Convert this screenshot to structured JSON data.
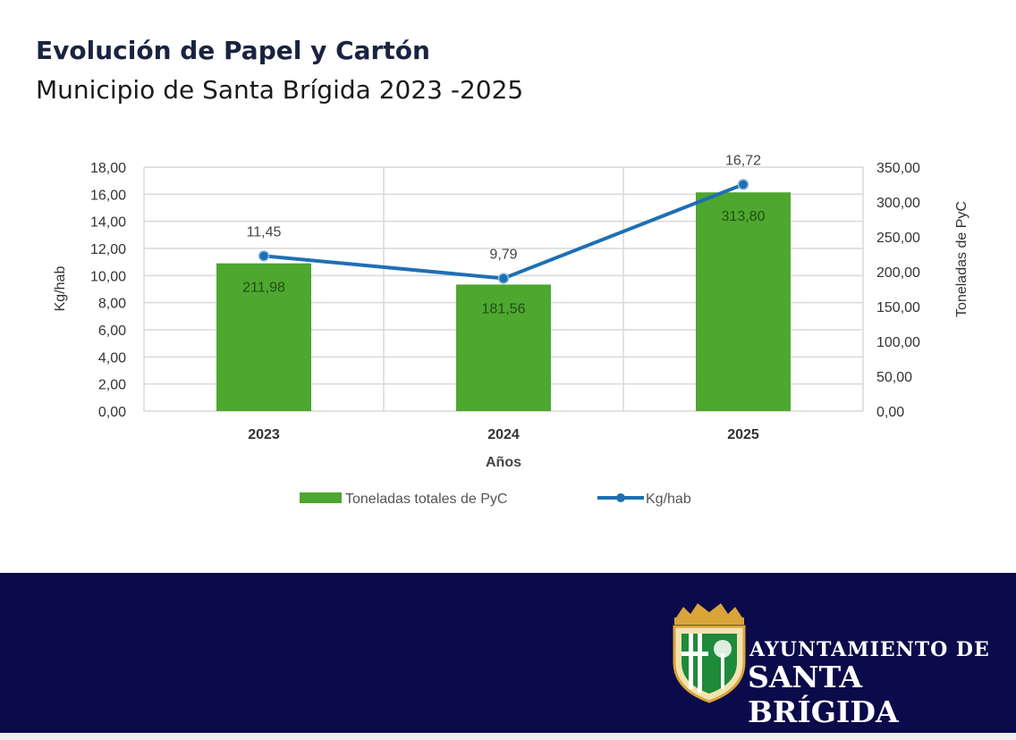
{
  "header": {
    "title": "Evolución de Papel y Cartón",
    "subtitle": "Municipio de Santa Brígida 2023 -2025"
  },
  "chart_data": {
    "type": "bar+line",
    "categories": [
      "2023",
      "2024",
      "2025"
    ],
    "xlabel": "Años",
    "ylabel_left": "Kg/hab",
    "ylabel_right": "Toneladas de PyC",
    "ylim_left": [
      0,
      18
    ],
    "ylim_right": [
      0,
      350
    ],
    "yticks_left": [
      "0,00",
      "2,00",
      "4,00",
      "6,00",
      "8,00",
      "10,00",
      "12,00",
      "14,00",
      "16,00",
      "18,00"
    ],
    "yticks_right": [
      "0,00",
      "50,00",
      "100,00",
      "150,00",
      "200,00",
      "250,00",
      "300,00",
      "350,00"
    ],
    "grid": true,
    "legend_placement": "bottom",
    "series": [
      {
        "name": "Toneladas totales de PyC",
        "type": "bar",
        "axis": "right",
        "values": [
          211.98,
          181.56,
          313.8
        ],
        "labels": [
          "211,98",
          "181,56",
          "313,80"
        ],
        "color": "#4ea72e"
      },
      {
        "name": "Kg/hab",
        "type": "line",
        "axis": "left",
        "values": [
          11.45,
          9.79,
          16.72
        ],
        "labels": [
          "11,45",
          "9,79",
          "16,72"
        ],
        "color": "#1f6fb4"
      }
    ]
  },
  "footer": {
    "logo_line1": "AYUNTAMIENTO DE",
    "logo_line2": "SANTA BRÍGIDA",
    "colors": {
      "background": "#0b0a4a",
      "shield_green": "#1e8a3a",
      "crown_gold": "#d9a43a"
    }
  }
}
